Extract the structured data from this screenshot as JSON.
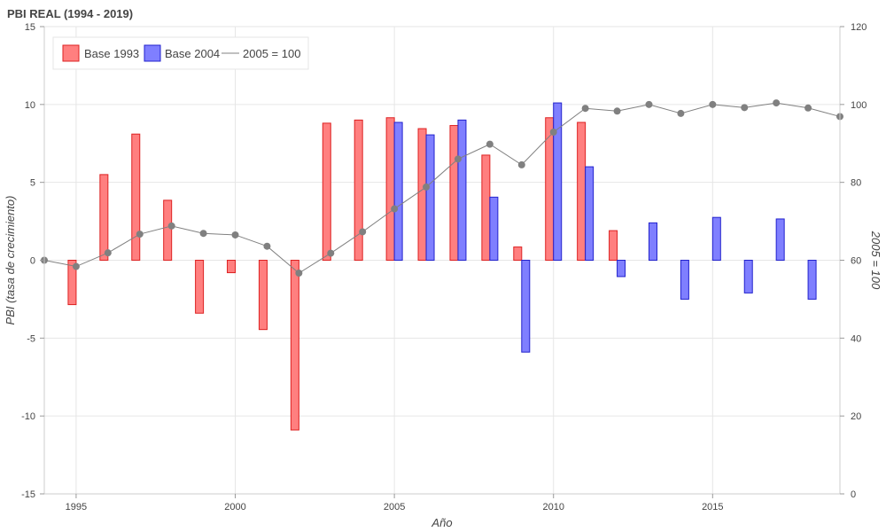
{
  "chart_data": {
    "type": "bar",
    "title": "PBI REAL (1994 - 2019)",
    "xlabel": "Año",
    "ylabel": "PBI (tasa de crecimiento)",
    "y2label": "2005 = 100",
    "xlim": [
      1994,
      2019
    ],
    "ylim": [
      -15,
      15
    ],
    "y2lim": [
      0,
      120
    ],
    "x_ticks": [
      1995,
      2000,
      2005,
      2010,
      2015
    ],
    "y_ticks": [
      -15,
      -10,
      -5,
      0,
      5,
      10,
      15
    ],
    "y2_ticks": [
      0,
      20,
      40,
      60,
      80,
      100,
      120
    ],
    "grid": true,
    "legend_position": "top-left",
    "series": [
      {
        "name": "Base 1993",
        "kind": "bar",
        "axis": "left",
        "fill": "#ff7f7f",
        "stroke": "#dd2222",
        "x": [
          1995,
          1996,
          1997,
          1998,
          1999,
          2000,
          2001,
          2002,
          2003,
          2004,
          2005,
          2006,
          2007,
          2008,
          2009,
          2010,
          2011,
          2012
        ],
        "values": [
          -2.85,
          5.5,
          8.1,
          3.85,
          -3.4,
          -0.8,
          -4.45,
          -10.9,
          8.8,
          9.0,
          9.15,
          8.45,
          8.65,
          6.75,
          0.85,
          9.15,
          8.85,
          1.9
        ]
      },
      {
        "name": "Base 2004",
        "kind": "bar",
        "axis": "left",
        "fill": "#7f7fff",
        "stroke": "#2222cc",
        "x": [
          2005,
          2006,
          2007,
          2008,
          2009,
          2010,
          2011,
          2012,
          2013,
          2014,
          2015,
          2016,
          2017,
          2018
        ],
        "values": [
          8.85,
          8.05,
          9.0,
          4.05,
          -5.9,
          10.1,
          6.0,
          -1.05,
          2.4,
          -2.5,
          2.75,
          -2.1,
          2.65,
          -2.5
        ]
      },
      {
        "name": "2005 = 100",
        "kind": "line",
        "axis": "right",
        "color": "#808080",
        "x": [
          1994,
          1995,
          1996,
          1997,
          1998,
          1999,
          2000,
          2001,
          2002,
          2003,
          2004,
          2005,
          2006,
          2007,
          2008,
          2009,
          2010,
          2011,
          2012,
          2013,
          2014,
          2015,
          2016,
          2017,
          2018,
          2019
        ],
        "values": [
          60.0,
          58.4,
          61.9,
          66.7,
          68.8,
          66.9,
          66.5,
          63.6,
          56.7,
          61.8,
          67.3,
          73.2,
          78.8,
          86.0,
          89.8,
          84.5,
          92.9,
          99.0,
          98.3,
          100.0,
          97.7,
          100.0,
          99.2,
          100.4,
          99.1,
          96.9
        ]
      }
    ]
  }
}
